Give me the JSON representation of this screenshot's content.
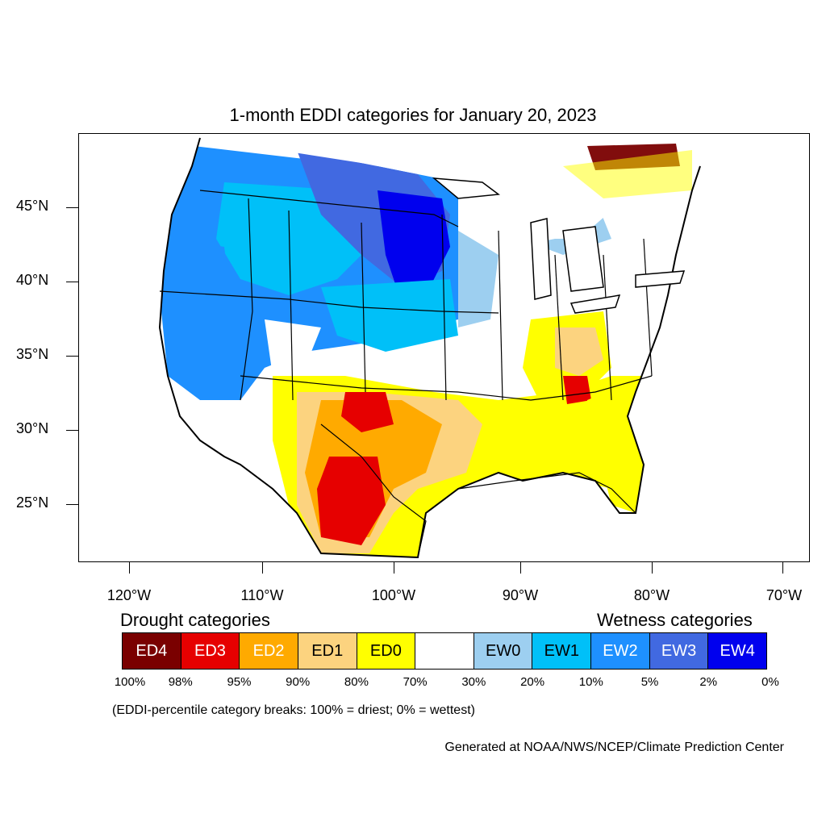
{
  "title": "1-month EDDI categories for January 20, 2023",
  "latitude_labels": [
    "45°N",
    "40°N",
    "35°N",
    "30°N",
    "25°N"
  ],
  "longitude_labels": [
    "120°W",
    "110°W",
    "100°W",
    "90°W",
    "80°W",
    "70°W"
  ],
  "legend": {
    "drought_heading": "Drought categories",
    "wetness_heading": "Wetness categories",
    "categories": [
      {
        "label": "ED4",
        "color": "#7a0000",
        "text_color": "#ffffff"
      },
      {
        "label": "ED3",
        "color": "#e60000",
        "text_color": "#ffffff"
      },
      {
        "label": "ED2",
        "color": "#ffaa00",
        "text_color": "#ffffff"
      },
      {
        "label": "ED1",
        "color": "#fcd37f",
        "text_color": "#000000"
      },
      {
        "label": "ED0",
        "color": "#ffff00",
        "text_color": "#000000"
      },
      {
        "label": "",
        "color": "#ffffff",
        "text_color": "#000000"
      },
      {
        "label": "EW0",
        "color": "#9dcff0",
        "text_color": "#000000"
      },
      {
        "label": "EW1",
        "color": "#00c0f8",
        "text_color": "#000000"
      },
      {
        "label": "EW2",
        "color": "#1e90ff",
        "text_color": "#ffffff"
      },
      {
        "label": "EW3",
        "color": "#4169e1",
        "text_color": "#ffffff"
      },
      {
        "label": "EW4",
        "color": "#0000ee",
        "text_color": "#ffffff"
      }
    ],
    "percentiles": [
      "100%",
      "98%",
      "95%",
      "90%",
      "80%",
      "70%",
      "30%",
      "20%",
      "10%",
      "5%",
      "2%",
      "0%"
    ]
  },
  "note": "(EDDI-percentile category breaks: 100% = driest; 0% = wettest)",
  "credit": "Generated at NOAA/NWS/NCEP/Climate Prediction Center"
}
